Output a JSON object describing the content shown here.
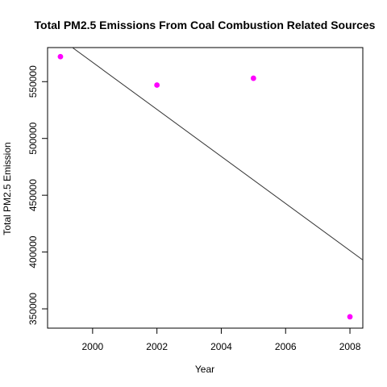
{
  "chart_data": {
    "type": "scatter",
    "title": "Total PM2.5 Emissions From Coal Combustion Related Sources",
    "xlabel": "Year",
    "ylabel": "Total PM2.5 Emission",
    "xlim": [
      1998.6,
      2008.4
    ],
    "ylim": [
      333000,
      580000
    ],
    "x_ticks": [
      2000,
      2002,
      2004,
      2006,
      2008
    ],
    "y_ticks": [
      350000,
      400000,
      450000,
      500000,
      550000
    ],
    "grid": false,
    "legend": "none",
    "series": [
      {
        "x": [
          1999,
          2002,
          2005,
          2008
        ],
        "values": [
          572000,
          547000,
          553000,
          343000
        ],
        "color": "#ff00ff",
        "marker": "filled-circle"
      }
    ],
    "trend_line": {
      "color": "#333333",
      "x": [
        1998.6,
        2008.4
      ],
      "y": [
        596000,
        393000
      ]
    }
  }
}
